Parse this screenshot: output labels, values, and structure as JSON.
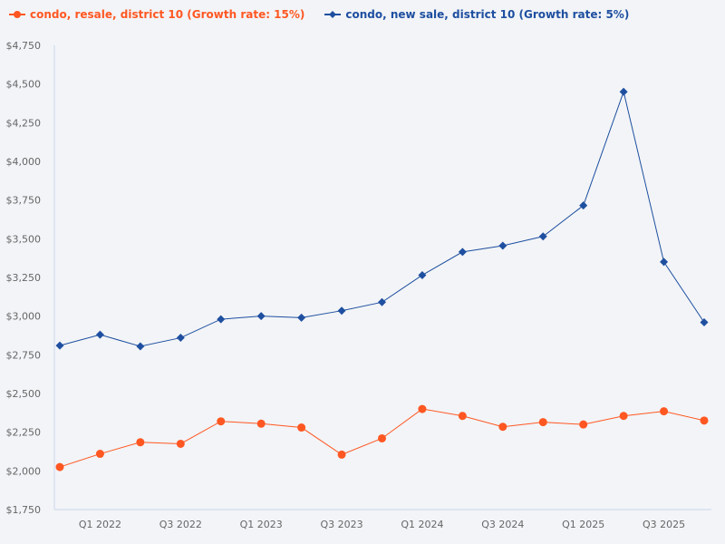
{
  "chart_data": {
    "type": "line",
    "x": [
      "Q4 2021",
      "Q1 2022",
      "Q2 2022",
      "Q3 2022",
      "Q4 2022",
      "Q1 2023",
      "Q2 2023",
      "Q3 2023",
      "Q4 2023",
      "Q1 2024",
      "Q2 2024",
      "Q3 2024",
      "Q4 2024",
      "Q1 2025",
      "Q2 2025",
      "Q3 2025",
      "Q4 2025"
    ],
    "tick_labels": [
      "Q1 2022",
      "Q3 2022",
      "Q1 2023",
      "Q3 2023",
      "Q1 2024",
      "Q3 2024",
      "Q1 2025",
      "Q3 2025"
    ],
    "ylim": [
      1750,
      4750
    ],
    "yticks": [
      "$1,750",
      "$2,000",
      "$2,250",
      "$2,500",
      "$2,750",
      "$3,000",
      "$3,250",
      "$3,500",
      "$3,750",
      "$4,000",
      "$4,250",
      "$4,500",
      "$4,750"
    ],
    "legend_position": "top-left",
    "grid": false,
    "series": [
      {
        "name": "condo, resale, district 10 (Growth rate: 15%)",
        "color": "#ff5722",
        "marker": "circle",
        "values": [
          2025,
          2110,
          2185,
          2175,
          2320,
          2305,
          2280,
          2105,
          2210,
          2400,
          2355,
          2285,
          2315,
          2300,
          2355,
          2385,
          2325
        ]
      },
      {
        "name": "condo, new sale, district 10 (Growth rate: 5%)",
        "color": "#1e4fa0",
        "marker": "diamond",
        "values": [
          2810,
          2880,
          2805,
          2860,
          2980,
          3000,
          2990,
          3035,
          3090,
          3265,
          3415,
          3455,
          3515,
          3715,
          4450,
          3350,
          2960
        ]
      }
    ]
  }
}
